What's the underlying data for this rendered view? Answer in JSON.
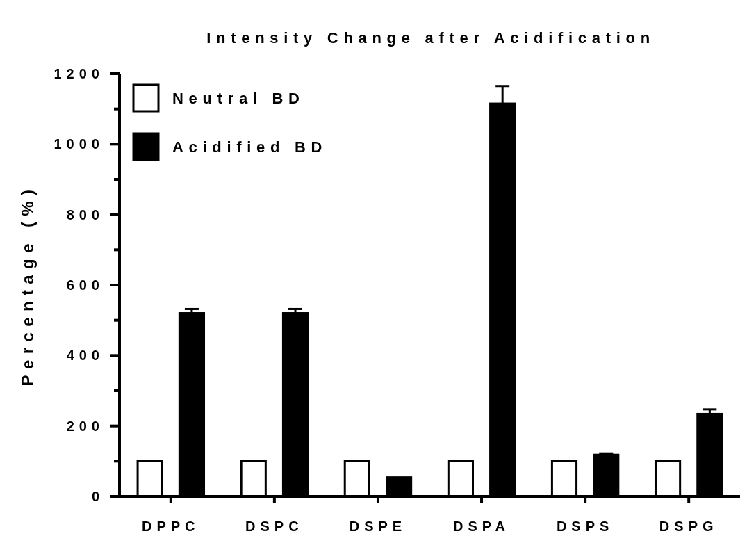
{
  "chart_data": {
    "type": "bar",
    "title": "Intensity Change after Acidification",
    "ylabel": "Percentage (%)",
    "categories": [
      "DPPC",
      "DSPC",
      "DSPE",
      "DSPA",
      "DSPS",
      "DSPG"
    ],
    "series": [
      {
        "name": "Neutral BD",
        "color": "#ffffff",
        "values": [
          100,
          100,
          100,
          100,
          100,
          100
        ]
      },
      {
        "name": "Acidified BD",
        "color": "#000000",
        "values": [
          520,
          520,
          54,
          1115,
          118,
          234
        ],
        "errors": [
          12,
          12,
          null,
          50,
          4,
          13
        ]
      }
    ],
    "ylim": [
      0,
      1200
    ],
    "yticks": [
      0,
      {
        "value": 100,
        "label": null
      },
      200,
      {
        "value": 300,
        "label": null
      },
      400,
      {
        "value": 500,
        "label": null
      },
      600,
      {
        "value": 700,
        "label": null
      },
      800,
      {
        "value": 900,
        "label": null
      },
      1000,
      {
        "value": 1100,
        "label": null
      },
      1200
    ],
    "legend": "top left",
    "grid": false
  }
}
